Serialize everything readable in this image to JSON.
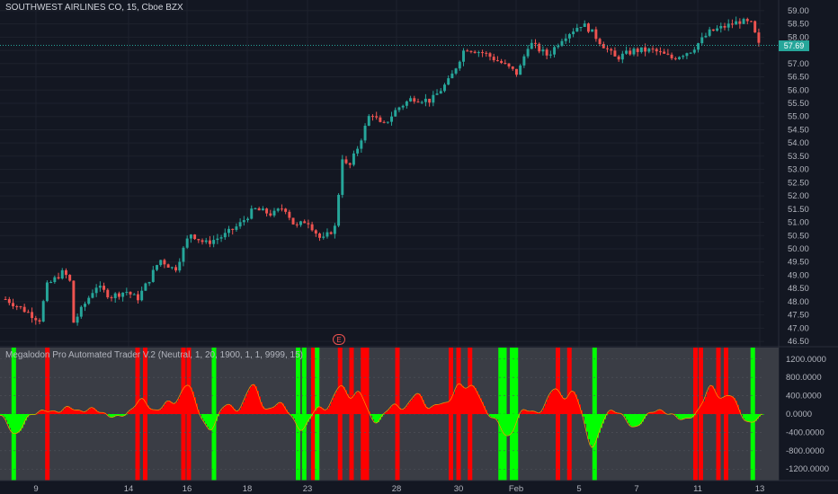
{
  "header": {
    "title": "SOUTHWEST AIRLINES CO, 15, Cboe BZX"
  },
  "indicator": {
    "title": "Megalodon Pro Automated Trader V.2 (Neutral, 1, 20, 1900, 1, 1, 9999, 15)"
  },
  "last_price_label": "57.69",
  "earnings_marker": "E",
  "colors": {
    "background": "#131722",
    "up": "#26a69a",
    "down": "#ef5350",
    "bull_bar": "#00ff00",
    "bear_bar": "#ff0000"
  },
  "chart_data": [
    {
      "type": "candlestick",
      "title": "SOUTHWEST AIRLINES CO, 15, Cboe BZX",
      "y_ticks": [
        "46.50",
        "47.00",
        "47.50",
        "48.00",
        "48.50",
        "49.00",
        "49.50",
        "50.00",
        "50.50",
        "51.00",
        "51.50",
        "52.00",
        "52.50",
        "53.00",
        "53.50",
        "54.00",
        "54.50",
        "55.00",
        "55.50",
        "56.00",
        "56.50",
        "57.00",
        "57.50",
        "58.00",
        "58.50",
        "59.00"
      ],
      "ylim": [
        46.3,
        59.2
      ],
      "last_price": 57.69,
      "x_ticks": [
        "9",
        "14",
        "16",
        "18",
        "23",
        "28",
        "30",
        "Feb",
        "5",
        "7",
        "11",
        "13"
      ],
      "price_path": [
        {
          "x": 0.0,
          "close": 48.1
        },
        {
          "x": 0.03,
          "close": 47.6
        },
        {
          "x": 0.045,
          "close": 47.3
        },
        {
          "x": 0.055,
          "close": 48.6
        },
        {
          "x": 0.075,
          "close": 49.1
        },
        {
          "x": 0.085,
          "close": 48.9
        },
        {
          "x": 0.09,
          "close": 47.2
        },
        {
          "x": 0.105,
          "close": 47.9
        },
        {
          "x": 0.12,
          "close": 48.6
        },
        {
          "x": 0.14,
          "close": 48.2
        },
        {
          "x": 0.16,
          "close": 48.4
        },
        {
          "x": 0.175,
          "close": 48.1
        },
        {
          "x": 0.19,
          "close": 48.8
        },
        {
          "x": 0.205,
          "close": 49.6
        },
        {
          "x": 0.225,
          "close": 49.2
        },
        {
          "x": 0.245,
          "close": 50.6
        },
        {
          "x": 0.265,
          "close": 50.2
        },
        {
          "x": 0.29,
          "close": 50.5
        },
        {
          "x": 0.31,
          "close": 50.9
        },
        {
          "x": 0.33,
          "close": 51.5
        },
        {
          "x": 0.355,
          "close": 51.3
        },
        {
          "x": 0.37,
          "close": 51.6
        },
        {
          "x": 0.385,
          "close": 50.8
        },
        {
          "x": 0.4,
          "close": 51.1
        },
        {
          "x": 0.42,
          "close": 50.3
        },
        {
          "x": 0.44,
          "close": 50.9
        },
        {
          "x": 0.445,
          "close": 53.6
        },
        {
          "x": 0.455,
          "close": 53.0
        },
        {
          "x": 0.47,
          "close": 54.0
        },
        {
          "x": 0.485,
          "close": 55.2
        },
        {
          "x": 0.5,
          "close": 54.6
        },
        {
          "x": 0.52,
          "close": 55.3
        },
        {
          "x": 0.54,
          "close": 55.7
        },
        {
          "x": 0.565,
          "close": 55.6
        },
        {
          "x": 0.59,
          "close": 56.4
        },
        {
          "x": 0.61,
          "close": 57.6
        },
        {
          "x": 0.635,
          "close": 57.4
        },
        {
          "x": 0.66,
          "close": 57.0
        },
        {
          "x": 0.68,
          "close": 56.6
        },
        {
          "x": 0.695,
          "close": 57.8
        },
        {
          "x": 0.72,
          "close": 57.3
        },
        {
          "x": 0.74,
          "close": 58.0
        },
        {
          "x": 0.765,
          "close": 58.5
        },
        {
          "x": 0.775,
          "close": 58.3
        },
        {
          "x": 0.79,
          "close": 57.8
        },
        {
          "x": 0.81,
          "close": 57.2
        },
        {
          "x": 0.835,
          "close": 57.5
        },
        {
          "x": 0.86,
          "close": 57.5
        },
        {
          "x": 0.885,
          "close": 57.2
        },
        {
          "x": 0.91,
          "close": 57.5
        },
        {
          "x": 0.935,
          "close": 58.2
        },
        {
          "x": 0.955,
          "close": 58.4
        },
        {
          "x": 0.975,
          "close": 58.6
        },
        {
          "x": 0.99,
          "close": 58.5
        },
        {
          "x": 1.0,
          "close": 57.7
        }
      ]
    },
    {
      "type": "area",
      "title": "Megalodon Pro Automated Trader V.2 (Neutral, 1, 20, 1900, 1, 1, 9999, 15)",
      "y_ticks": [
        "1200.0000",
        "800.0000",
        "400.0000",
        "0.0000",
        "-400.0000",
        "-800.0000",
        "-1200.0000"
      ],
      "ylim": [
        -1450,
        1450
      ],
      "series_peaks": [
        {
          "x": 0.02,
          "y": -450
        },
        {
          "x": 0.06,
          "y": 80
        },
        {
          "x": 0.09,
          "y": 150
        },
        {
          "x": 0.12,
          "y": 120
        },
        {
          "x": 0.15,
          "y": -60
        },
        {
          "x": 0.185,
          "y": 320
        },
        {
          "x": 0.22,
          "y": 260
        },
        {
          "x": 0.245,
          "y": 650
        },
        {
          "x": 0.275,
          "y": -350
        },
        {
          "x": 0.295,
          "y": 230
        },
        {
          "x": 0.33,
          "y": 650
        },
        {
          "x": 0.365,
          "y": 240
        },
        {
          "x": 0.395,
          "y": -350
        },
        {
          "x": 0.415,
          "y": 150
        },
        {
          "x": 0.445,
          "y": 620
        },
        {
          "x": 0.47,
          "y": 480
        },
        {
          "x": 0.49,
          "y": -200
        },
        {
          "x": 0.515,
          "y": 200
        },
        {
          "x": 0.545,
          "y": 450
        },
        {
          "x": 0.575,
          "y": 230
        },
        {
          "x": 0.6,
          "y": 600
        },
        {
          "x": 0.62,
          "y": 560
        },
        {
          "x": 0.645,
          "y": -60
        },
        {
          "x": 0.665,
          "y": -500
        },
        {
          "x": 0.685,
          "y": 120
        },
        {
          "x": 0.725,
          "y": 560
        },
        {
          "x": 0.75,
          "y": 480
        },
        {
          "x": 0.775,
          "y": -720
        },
        {
          "x": 0.8,
          "y": 80
        },
        {
          "x": 0.83,
          "y": -300
        },
        {
          "x": 0.86,
          "y": 80
        },
        {
          "x": 0.895,
          "y": -120
        },
        {
          "x": 0.93,
          "y": 600
        },
        {
          "x": 0.955,
          "y": 420
        },
        {
          "x": 0.98,
          "y": -200
        }
      ],
      "signal_bars": [
        {
          "x": 0.018,
          "color": "green"
        },
        {
          "x": 0.062,
          "color": "red"
        },
        {
          "x": 0.18,
          "color": "red"
        },
        {
          "x": 0.19,
          "color": "red"
        },
        {
          "x": 0.24,
          "color": "red"
        },
        {
          "x": 0.247,
          "color": "red"
        },
        {
          "x": 0.28,
          "color": "green"
        },
        {
          "x": 0.39,
          "color": "green"
        },
        {
          "x": 0.398,
          "color": "green"
        },
        {
          "x": 0.41,
          "color": "red"
        },
        {
          "x": 0.415,
          "color": "green"
        },
        {
          "x": 0.445,
          "color": "red"
        },
        {
          "x": 0.46,
          "color": "red"
        },
        {
          "x": 0.475,
          "color": "red"
        },
        {
          "x": 0.48,
          "color": "red"
        },
        {
          "x": 0.52,
          "color": "red"
        },
        {
          "x": 0.59,
          "color": "red"
        },
        {
          "x": 0.6,
          "color": "red"
        },
        {
          "x": 0.615,
          "color": "red"
        },
        {
          "x": 0.655,
          "color": "green"
        },
        {
          "x": 0.66,
          "color": "green"
        },
        {
          "x": 0.67,
          "color": "green"
        },
        {
          "x": 0.675,
          "color": "green"
        },
        {
          "x": 0.73,
          "color": "red"
        },
        {
          "x": 0.745,
          "color": "red"
        },
        {
          "x": 0.778,
          "color": "green"
        },
        {
          "x": 0.91,
          "color": "red"
        },
        {
          "x": 0.917,
          "color": "red"
        },
        {
          "x": 0.94,
          "color": "red"
        },
        {
          "x": 0.95,
          "color": "red"
        },
        {
          "x": 0.985,
          "color": "green"
        }
      ]
    }
  ]
}
